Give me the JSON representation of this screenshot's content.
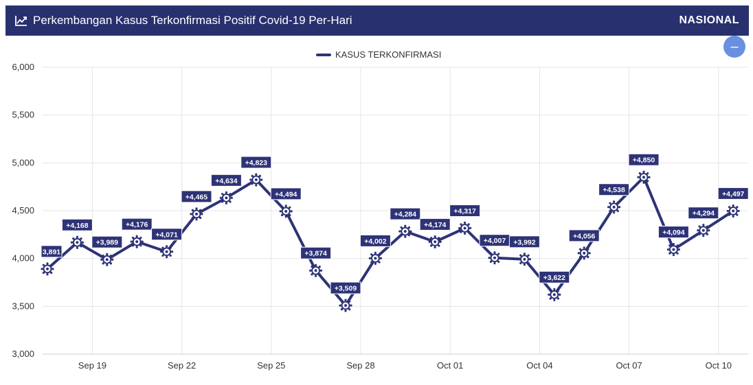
{
  "header": {
    "title": "Perkembangan Kasus Terkonfirmasi Positif Covid-19 Per-Hari",
    "scope": "NASIONAL",
    "icon": "line-chart-icon"
  },
  "legend": {
    "label": "KASUS TERKONFIRMASI"
  },
  "zoom_button": {
    "symbol": "–",
    "icon": "minus-icon"
  },
  "colors": {
    "header_bg": "#28306e",
    "series": "#2e3377",
    "grid": "#e4e4e4",
    "zoom": "#6a8fe0"
  },
  "chart_data": {
    "type": "line",
    "title": "Perkembangan Kasus Terkonfirmasi Positif Covid-19 Per-Hari",
    "x": [
      "Sep 18",
      "Sep 19",
      "Sep 20",
      "Sep 21",
      "Sep 22",
      "Sep 23",
      "Sep 24",
      "Sep 25",
      "Sep 26",
      "Sep 27",
      "Sep 28",
      "Sep 29",
      "Sep 30",
      "Oct 01",
      "Oct 02",
      "Oct 03",
      "Oct 04",
      "Oct 05",
      "Oct 06",
      "Oct 07",
      "Oct 08",
      "Oct 09",
      "Oct 10",
      "Oct 11"
    ],
    "x_ticks": [
      "Sep 19",
      "Sep 22",
      "Sep 25",
      "Sep 28",
      "Oct 01",
      "Oct 04",
      "Oct 07",
      "Oct 10"
    ],
    "series": [
      {
        "name": "KASUS TERKONFIRMASI",
        "values": [
          3891,
          4168,
          3989,
          4176,
          4071,
          4465,
          4634,
          4823,
          4494,
          3874,
          3509,
          4002,
          4284,
          4174,
          4317,
          4007,
          3992,
          3622,
          4056,
          4538,
          4850,
          4094,
          4294,
          4497
        ],
        "labels": [
          "3,891",
          "+4,168",
          "+3,989",
          "+4,176",
          "+4,071",
          "+4,465",
          "+4,634",
          "+4,823",
          "+4,494",
          "+3,874",
          "+3,509",
          "+4,002",
          "+4,284",
          "+4,174",
          "+4,317",
          "+4,007",
          "+3,992",
          "+3,622",
          "+4,056",
          "+4,538",
          "+4,850",
          "+4,094",
          "+4,294",
          "+4,497"
        ]
      }
    ],
    "y_ticks": [
      "3,000",
      "3,500",
      "4,000",
      "4,500",
      "5,000",
      "5,500",
      "6,000"
    ],
    "ylim": [
      3000,
      6000
    ],
    "grid": true,
    "legend_position": "top-center"
  }
}
